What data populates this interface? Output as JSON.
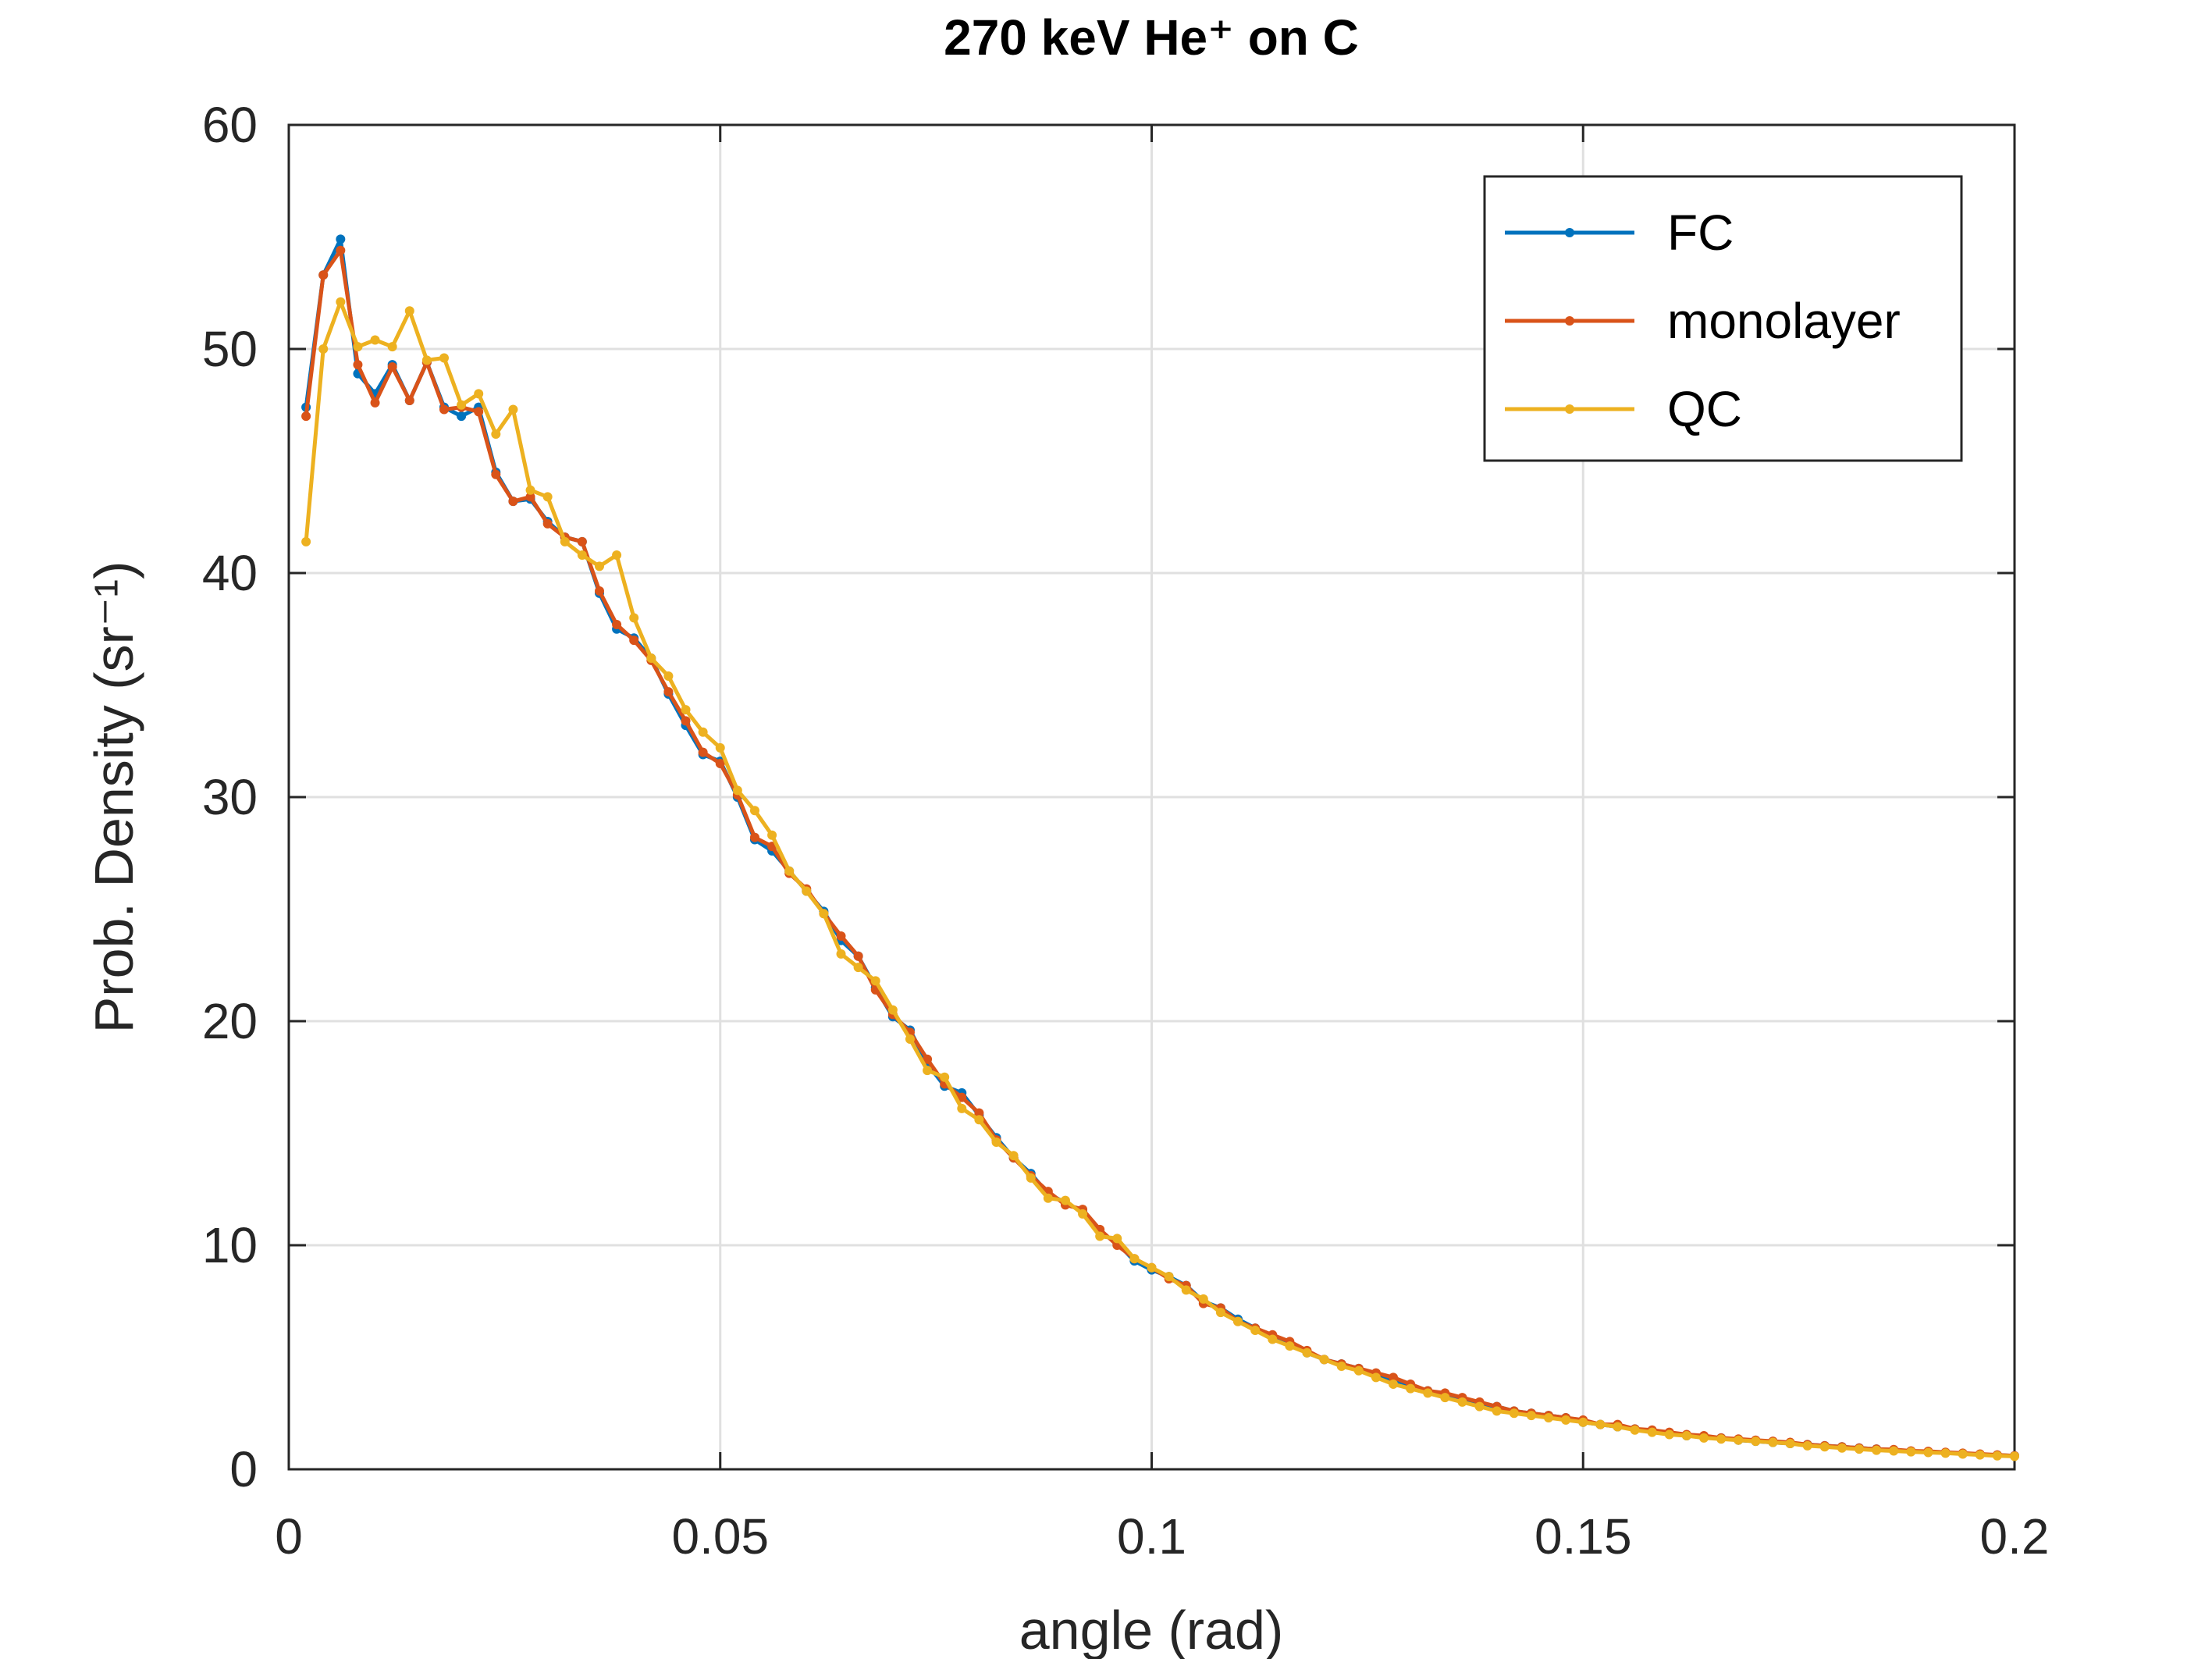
{
  "chart_data": {
    "type": "line",
    "title": "270 keV He⁺ on C",
    "xlabel": "angle (rad)",
    "ylabel": "Prob. Density (sr⁻¹)",
    "xlim": [
      0,
      0.2
    ],
    "ylim": [
      0,
      60
    ],
    "xticks": [
      0,
      0.05,
      0.1,
      0.15,
      0.2
    ],
    "xtick_labels": [
      "0",
      "0.05",
      "0.1",
      "0.15",
      "0.2"
    ],
    "yticks": [
      0,
      10,
      20,
      30,
      40,
      50,
      60
    ],
    "ytick_labels": [
      "0",
      "10",
      "20",
      "30",
      "40",
      "50",
      "60"
    ],
    "grid": true,
    "legend_position": "top-right",
    "x": [
      0.002,
      0.004,
      0.006,
      0.008,
      0.01,
      0.012,
      0.014,
      0.016,
      0.018,
      0.02,
      0.022,
      0.024,
      0.026,
      0.028,
      0.03,
      0.032,
      0.034,
      0.036,
      0.038,
      0.04,
      0.042,
      0.044,
      0.046,
      0.048,
      0.05,
      0.052,
      0.054,
      0.056,
      0.058,
      0.06,
      0.062,
      0.064,
      0.066,
      0.068,
      0.07,
      0.072,
      0.074,
      0.076,
      0.078,
      0.08,
      0.082,
      0.084,
      0.086,
      0.088,
      0.09,
      0.092,
      0.094,
      0.096,
      0.098,
      0.1,
      0.102,
      0.104,
      0.106,
      0.108,
      0.11,
      0.112,
      0.114,
      0.116,
      0.118,
      0.12,
      0.122,
      0.124,
      0.126,
      0.128,
      0.13,
      0.132,
      0.134,
      0.136,
      0.138,
      0.14,
      0.142,
      0.144,
      0.146,
      0.148,
      0.15,
      0.152,
      0.154,
      0.156,
      0.158,
      0.16,
      0.162,
      0.164,
      0.166,
      0.168,
      0.17,
      0.172,
      0.174,
      0.176,
      0.178,
      0.18,
      0.182,
      0.184,
      0.186,
      0.188,
      0.19,
      0.192,
      0.194,
      0.196,
      0.198,
      0.2
    ],
    "series": [
      {
        "name": "FC",
        "color": "#0072BD",
        "values": [
          47.4,
          53.3,
          54.9,
          48.9,
          48.0,
          49.3,
          47.7,
          49.4,
          47.4,
          47.0,
          47.4,
          44.5,
          43.2,
          43.3,
          42.3,
          41.6,
          41.4,
          39.1,
          37.5,
          37.1,
          36.2,
          34.6,
          33.2,
          31.9,
          31.6,
          30.0,
          28.1,
          27.6,
          26.7,
          25.8,
          24.9,
          23.6,
          22.9,
          21.5,
          20.2,
          19.6,
          18.1,
          17.1,
          16.8,
          15.8,
          14.8,
          13.9,
          13.2,
          12.3,
          11.9,
          11.5,
          10.6,
          10.1,
          9.3,
          8.9,
          8.6,
          8.2,
          7.5,
          7.2,
          6.7,
          6.3,
          5.9,
          5.6,
          5.2,
          4.9,
          4.7,
          4.5,
          4.2,
          4.0,
          3.7,
          3.5,
          3.3,
          3.1,
          2.9,
          2.8,
          2.6,
          2.5,
          2.4,
          2.3,
          2.1,
          2.0,
          1.9,
          1.8,
          1.7,
          1.6,
          1.5,
          1.45,
          1.4,
          1.3,
          1.25,
          1.2,
          1.15,
          1.1,
          1.05,
          1.0,
          0.95,
          0.9,
          0.85,
          0.8,
          0.78,
          0.74,
          0.7,
          0.66,
          0.63,
          0.6
        ]
      },
      {
        "name": "monolayer",
        "color": "#D95319",
        "values": [
          47.0,
          53.3,
          54.4,
          49.3,
          47.6,
          49.2,
          47.7,
          49.4,
          47.3,
          47.4,
          47.2,
          44.4,
          43.2,
          43.4,
          42.2,
          41.6,
          41.4,
          39.2,
          37.7,
          37.0,
          36.1,
          34.7,
          33.4,
          32.0,
          31.5,
          30.1,
          28.2,
          27.8,
          26.6,
          25.9,
          24.8,
          23.8,
          22.9,
          21.4,
          20.3,
          19.5,
          18.3,
          17.2,
          16.6,
          15.9,
          14.7,
          13.9,
          13.1,
          12.4,
          11.8,
          11.6,
          10.7,
          10.0,
          9.4,
          9.0,
          8.5,
          8.2,
          7.4,
          7.2,
          6.6,
          6.3,
          6.0,
          5.7,
          5.3,
          4.9,
          4.7,
          4.5,
          4.3,
          4.1,
          3.8,
          3.5,
          3.4,
          3.2,
          3.0,
          2.8,
          2.6,
          2.5,
          2.4,
          2.3,
          2.2,
          2.0,
          2.0,
          1.8,
          1.75,
          1.65,
          1.55,
          1.5,
          1.4,
          1.35,
          1.3,
          1.25,
          1.2,
          1.1,
          1.05,
          1.0,
          0.95,
          0.9,
          0.88,
          0.82,
          0.8,
          0.76,
          0.72,
          0.68,
          0.64,
          0.6
        ]
      },
      {
        "name": "QC",
        "color": "#EDB120",
        "values": [
          41.4,
          50.0,
          52.1,
          50.1,
          50.4,
          50.1,
          51.7,
          49.5,
          49.6,
          47.5,
          48.0,
          46.2,
          47.3,
          43.7,
          43.4,
          41.4,
          40.8,
          40.3,
          40.8,
          38.0,
          36.2,
          35.4,
          33.9,
          32.9,
          32.2,
          30.3,
          29.4,
          28.3,
          26.7,
          25.8,
          24.8,
          23.0,
          22.4,
          21.8,
          20.5,
          19.2,
          17.8,
          17.5,
          16.1,
          15.6,
          14.6,
          14.0,
          13.0,
          12.1,
          12.0,
          11.4,
          10.4,
          10.3,
          9.4,
          9.0,
          8.6,
          8.0,
          7.6,
          7.0,
          6.6,
          6.2,
          5.8,
          5.5,
          5.2,
          4.9,
          4.6,
          4.4,
          4.1,
          3.8,
          3.6,
          3.4,
          3.2,
          3.0,
          2.8,
          2.6,
          2.5,
          2.4,
          2.3,
          2.2,
          2.1,
          2.0,
          1.9,
          1.75,
          1.65,
          1.55,
          1.5,
          1.4,
          1.35,
          1.3,
          1.25,
          1.2,
          1.15,
          1.05,
          1.0,
          0.95,
          0.9,
          0.85,
          0.82,
          0.78,
          0.75,
          0.72,
          0.68,
          0.64,
          0.6,
          0.58
        ]
      }
    ]
  }
}
